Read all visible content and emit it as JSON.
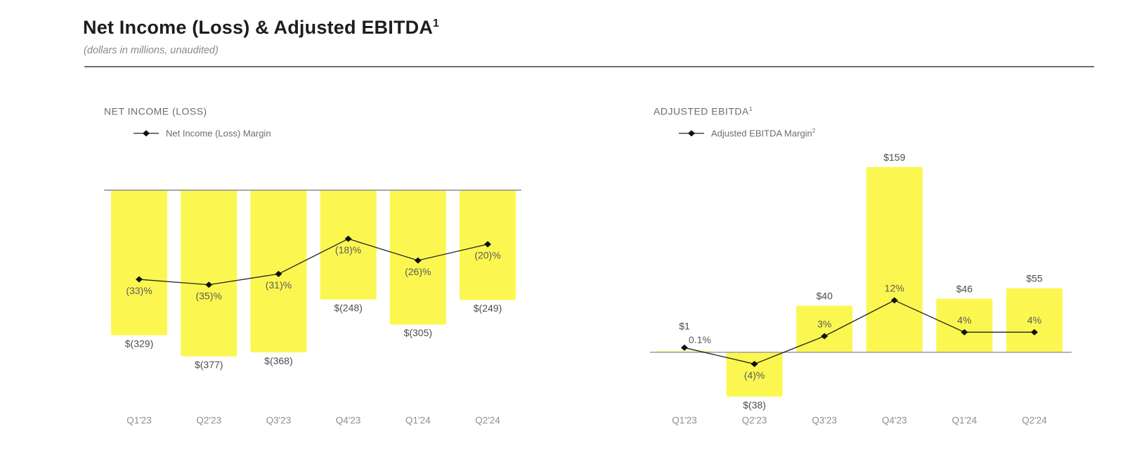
{
  "page": {
    "title": "Net Income (Loss) & Adjusted EBITDA",
    "title_sup": "1",
    "subtitle": "(dollars in millions, unaudited)"
  },
  "colors": {
    "bar_yellow": "#FCF750",
    "line_black": "#222222",
    "axis_gray": "#9c9c9c",
    "value_label_gray": "#4d4d4d",
    "margin_label_gray": "#5a5a5a",
    "tick_label_gray": "#8f8f8f"
  },
  "chart_data": [
    {
      "type": "bar+line",
      "title": "NET INCOME (LOSS)",
      "title_sup": "",
      "legend": "Net Income (Loss) Margin",
      "legend_sup": "",
      "units": "dollars in millions",
      "categories": [
        "Q1'23",
        "Q2'23",
        "Q3'23",
        "Q4'23",
        "Q1'24",
        "Q2'24"
      ],
      "bars": {
        "name": "Net Income (Loss)",
        "values": [
          -329,
          -377,
          -368,
          -248,
          -305,
          -249
        ],
        "labels": [
          "$(329)",
          "$(377)",
          "$(368)",
          "$(248)",
          "$(305)",
          "$(249)"
        ]
      },
      "line": {
        "name": "Net Income (Loss) Margin",
        "values_pct": [
          -33,
          -35,
          -31,
          -18,
          -26,
          -20
        ],
        "labels": [
          "(33)%",
          "(35)%",
          "(31)%",
          "(18)%",
          "(26)%",
          "(20)%"
        ],
        "label_side": [
          "below",
          "below",
          "below",
          "below",
          "below",
          "below"
        ]
      },
      "layout_hints": {
        "bars_direction": "down-from-baseline",
        "gridlines": false,
        "legend_position": "top-left"
      }
    },
    {
      "type": "bar+line",
      "title": "ADJUSTED EBITDA",
      "title_sup": "1",
      "legend": "Adjusted EBITDA Margin",
      "legend_sup": "2",
      "units": "dollars in millions",
      "categories": [
        "Q1'23",
        "Q2'23",
        "Q3'23",
        "Q4'23",
        "Q1'24",
        "Q2'24"
      ],
      "bars": {
        "name": "Adjusted EBITDA",
        "values": [
          1,
          -38,
          40,
          159,
          46,
          55
        ],
        "labels": [
          "$1",
          "$(38)",
          "$40",
          "$159",
          "$46",
          "$55"
        ]
      },
      "line": {
        "name": "Adjusted EBITDA Margin",
        "values_pct": [
          0.1,
          -4,
          3,
          12,
          4,
          4
        ],
        "labels": [
          "0.1%",
          "(4)%",
          "3%",
          "12%",
          "4%",
          "4%"
        ],
        "label_side": [
          "above",
          "below",
          "above",
          "above",
          "above",
          "above"
        ]
      },
      "layout_hints": {
        "bars_direction": "up-and-down-from-baseline",
        "gridlines": false,
        "legend_position": "top-left"
      }
    }
  ]
}
